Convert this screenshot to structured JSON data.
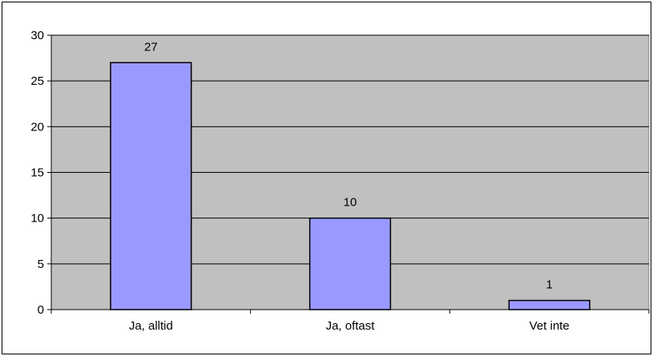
{
  "chart_data": {
    "type": "bar",
    "categories": [
      "Ja, alltid",
      "Ja, oftast",
      "Vet inte"
    ],
    "values": [
      27,
      10,
      1
    ],
    "data_labels": [
      "27",
      "10",
      "1"
    ],
    "ylim": [
      0,
      30
    ],
    "yticks": [
      0,
      5,
      10,
      15,
      20,
      25,
      30
    ],
    "title": "",
    "xlabel": "",
    "ylabel": "",
    "grid": true,
    "legend": false,
    "colors": {
      "plot_background": "#c0c0c0",
      "bar_fill": "#9999ff",
      "bar_stroke": "#000000",
      "grid": "#000000"
    }
  }
}
